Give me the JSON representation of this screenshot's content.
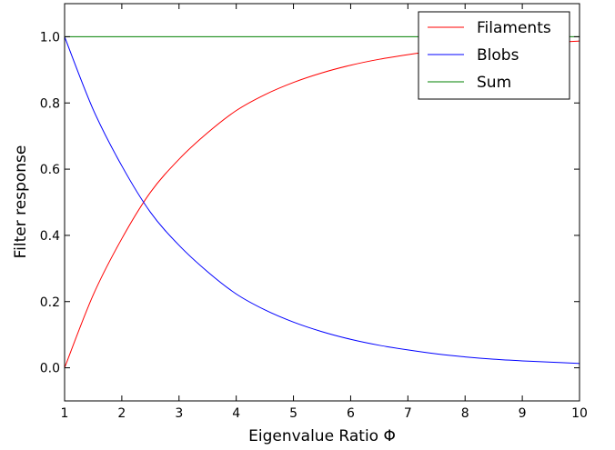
{
  "chart_data": {
    "type": "line",
    "xlabel": "Eigenvalue Ratio Φ",
    "ylabel": "Filter response",
    "xlim": [
      1,
      10
    ],
    "ylim": [
      -0.1,
      1.1
    ],
    "xticks": [
      1,
      2,
      3,
      4,
      5,
      6,
      7,
      8,
      9,
      10
    ],
    "xtick_labels": [
      "1",
      "2",
      "3",
      "4",
      "5",
      "6",
      "7",
      "8",
      "9",
      "10"
    ],
    "yticks": [
      0.0,
      0.2,
      0.4,
      0.6,
      0.8,
      1.0
    ],
    "ytick_labels": [
      "0.0",
      "0.2",
      "0.4",
      "0.6",
      "0.8",
      "1.0"
    ],
    "grid": false,
    "legend_position": "top-right",
    "x": [
      1,
      1.5,
      2,
      2.5,
      3,
      3.5,
      4,
      4.5,
      5,
      5.5,
      6,
      6.5,
      7,
      7.5,
      8,
      8.5,
      9,
      9.5,
      10
    ],
    "series": [
      {
        "name": "Filaments",
        "color": "#ff0000",
        "values": [
          0.0,
          0.22,
          0.39,
          0.53,
          0.63,
          0.71,
          0.777,
          0.825,
          0.862,
          0.891,
          0.914,
          0.932,
          0.946,
          0.958,
          0.967,
          0.974,
          0.979,
          0.983,
          0.987
        ]
      },
      {
        "name": "Blobs",
        "color": "#0000ff",
        "values": [
          1.0,
          0.78,
          0.61,
          0.47,
          0.37,
          0.29,
          0.223,
          0.175,
          0.138,
          0.109,
          0.086,
          0.068,
          0.054,
          0.042,
          0.033,
          0.026,
          0.021,
          0.017,
          0.013
        ]
      },
      {
        "name": "Sum",
        "color": "#008000",
        "values": [
          1,
          1,
          1,
          1,
          1,
          1,
          1,
          1,
          1,
          1,
          1,
          1,
          1,
          1,
          1,
          1,
          1,
          1,
          1
        ]
      }
    ]
  }
}
